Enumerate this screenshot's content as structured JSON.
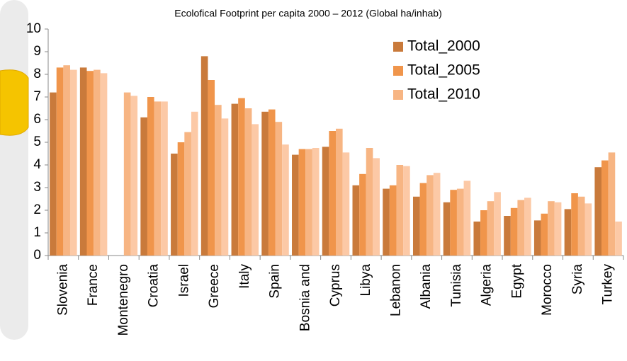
{
  "chart_data": {
    "type": "bar",
    "title": "Ecolofical Footprint per capita 2000 – 2012 (Global ha/inhab)",
    "categories": [
      "Slovenia",
      "France",
      "Montenegro",
      "Croatia",
      "Israel",
      "Greece",
      "Italy",
      "Spain",
      "Bosnia and",
      "Cyprus",
      "Libya",
      "Lebanon",
      "Albania",
      "Tunisia",
      "Algeria",
      "Egypt",
      "Morocco",
      "Syria",
      "Turkey"
    ],
    "series": [
      {
        "name": "Total_2000",
        "color": "#c97a3b",
        "values": [
          7.2,
          8.3,
          null,
          6.1,
          4.5,
          8.8,
          6.7,
          6.35,
          4.45,
          4.8,
          3.1,
          2.95,
          2.6,
          2.35,
          1.5,
          1.75,
          1.55,
          2.05,
          3.9
        ]
      },
      {
        "name": "Total_2005",
        "color": "#f0954b",
        "values": [
          8.3,
          8.15,
          null,
          7.0,
          5.0,
          7.75,
          6.95,
          6.45,
          4.7,
          5.5,
          3.6,
          3.1,
          3.2,
          2.9,
          2.0,
          2.1,
          1.85,
          2.75,
          4.2
        ]
      },
      {
        "name": "Total_2010",
        "color": "#f7b583",
        "values": [
          8.4,
          8.2,
          7.2,
          6.8,
          5.45,
          6.65,
          6.5,
          5.9,
          4.7,
          5.6,
          4.75,
          4.0,
          3.55,
          2.95,
          2.4,
          2.45,
          2.4,
          2.6,
          4.55
        ]
      },
      {
        "color": "#fcc9a6",
        "values": [
          8.2,
          8.05,
          7.05,
          6.8,
          6.35,
          6.05,
          5.8,
          4.9,
          4.75,
          4.55,
          4.3,
          3.95,
          3.65,
          3.3,
          2.8,
          2.55,
          2.35,
          2.3,
          1.5
        ]
      }
    ],
    "ylim": [
      0,
      10
    ],
    "yticks": [
      0,
      1,
      2,
      3,
      4,
      5,
      6,
      7,
      8,
      9,
      10
    ],
    "legend": "top-right"
  }
}
